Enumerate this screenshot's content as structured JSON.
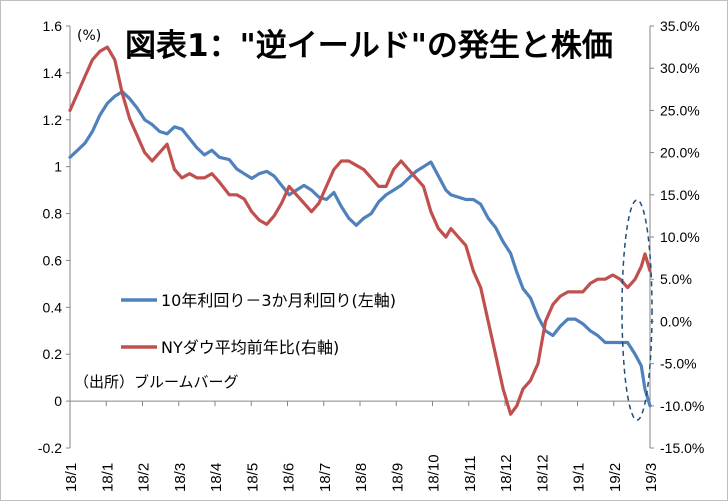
{
  "chart_data": {
    "type": "line",
    "title": "図表1：\"逆イールド\"の発生と株価",
    "left_axis_unit": "(%)",
    "source_note": "（出所）ブルームバーグ",
    "x_ticks": [
      "18/1",
      "18/1",
      "18/2",
      "18/3",
      "18/4",
      "18/5",
      "18/6",
      "18/7",
      "18/8",
      "18/9",
      "18/10",
      "18/11",
      "18/12",
      "18/12",
      "19/1",
      "19/2",
      "19/3"
    ],
    "y_left": {
      "min": -0.2,
      "max": 1.6,
      "ticks": [
        "-0.2",
        "0",
        "0.2",
        "0.4",
        "0.6",
        "0.8",
        "1",
        "1.2",
        "1.4",
        "1.6"
      ]
    },
    "y_right": {
      "min": -15,
      "max": 35,
      "ticks": [
        "-15.0%",
        "-10.0%",
        "-5.0%",
        "0.0%",
        "5.0%",
        "10.0%",
        "15.0%",
        "20.0%",
        "25.0%",
        "30.0%",
        "35.0%"
      ]
    },
    "series": [
      {
        "name": "10年利回り－3か月利回り(左軸)",
        "axis": "left",
        "color": "#4f81bd",
        "x": [
          0,
          3,
          6,
          9,
          12,
          15,
          18,
          21,
          24,
          27,
          30,
          33,
          36,
          39,
          42,
          45,
          48,
          51,
          54,
          57,
          60,
          64,
          67,
          70,
          73,
          76,
          79,
          82,
          85,
          88,
          91,
          94,
          97,
          100,
          103,
          106,
          109,
          112,
          115,
          118,
          121,
          124,
          127,
          130,
          133,
          136,
          139,
          142,
          145,
          148,
          151,
          153,
          156,
          159,
          162,
          165,
          168,
          171,
          174,
          177,
          179.5,
          182,
          185,
          188,
          191,
          194,
          197,
          200,
          203,
          206,
          209,
          212,
          215,
          218,
          221,
          224,
          227,
          229.5,
          231,
          233
        ],
        "values": [
          1.04,
          1.07,
          1.1,
          1.15,
          1.22,
          1.27,
          1.3,
          1.32,
          1.29,
          1.25,
          1.2,
          1.18,
          1.15,
          1.14,
          1.17,
          1.16,
          1.12,
          1.08,
          1.05,
          1.07,
          1.04,
          1.03,
          0.99,
          0.97,
          0.95,
          0.97,
          0.98,
          0.96,
          0.92,
          0.88,
          0.9,
          0.92,
          0.9,
          0.87,
          0.86,
          0.89,
          0.83,
          0.78,
          0.75,
          0.78,
          0.8,
          0.85,
          0.88,
          0.9,
          0.92,
          0.95,
          0.98,
          1.0,
          1.02,
          0.96,
          0.9,
          0.88,
          0.87,
          0.86,
          0.86,
          0.84,
          0.78,
          0.74,
          0.68,
          0.63,
          0.55,
          0.48,
          0.44,
          0.36,
          0.3,
          0.28,
          0.32,
          0.35,
          0.35,
          0.33,
          0.3,
          0.28,
          0.25,
          0.25,
          0.25,
          0.25,
          0.2,
          0.15,
          0.05,
          -0.02
        ]
      },
      {
        "name": "NYダウ平均前年比(右軸)",
        "axis": "right",
        "color": "#c0504d",
        "x": [
          0,
          3,
          6,
          9,
          12,
          15,
          18,
          21,
          24,
          27,
          30,
          33,
          36,
          39,
          42,
          45,
          48,
          51,
          54,
          57,
          60,
          64,
          67,
          70,
          73,
          76,
          79,
          82,
          85,
          88,
          91,
          94,
          97,
          100,
          103,
          106,
          109,
          112,
          115,
          118,
          121,
          124,
          127,
          130,
          133,
          136,
          139,
          142,
          145,
          148,
          151,
          153,
          156,
          159,
          162,
          165,
          168,
          171,
          174,
          177,
          179.5,
          182,
          185,
          188,
          191,
          194,
          197,
          200,
          203,
          206,
          209,
          212,
          215,
          218,
          221,
          224,
          227,
          229.5,
          231,
          233
        ],
        "values": [
          25,
          27,
          29,
          31,
          32,
          32.5,
          31,
          27,
          24,
          22,
          20,
          19,
          20,
          21,
          18,
          17,
          17.5,
          17,
          17,
          17.5,
          16.5,
          15,
          15,
          14.5,
          13,
          12,
          11.5,
          12.5,
          14,
          16,
          15,
          14,
          13,
          14,
          16,
          18,
          19,
          19,
          18.5,
          18,
          17,
          16,
          16,
          18,
          19,
          18,
          17,
          16,
          13,
          11,
          10,
          11,
          10,
          9,
          6,
          4,
          0,
          -4,
          -8,
          -11,
          -10,
          -8,
          -7,
          -5,
          0,
          2,
          3,
          3.5,
          3.5,
          3.5,
          4.5,
          5,
          5,
          5.5,
          5,
          4,
          5,
          6.5,
          8,
          6
        ]
      }
    ],
    "annotation": "dashed ellipse highlighting the inversion around 19/3"
  }
}
